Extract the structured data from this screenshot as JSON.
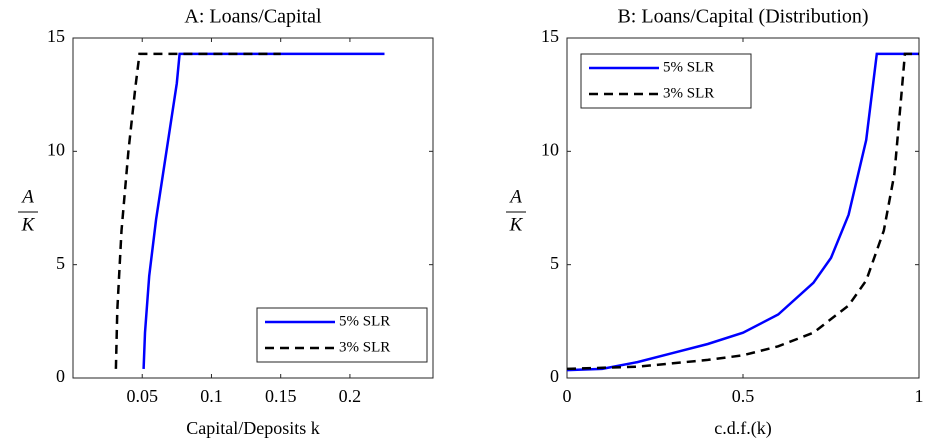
{
  "chart_data": [
    {
      "type": "line",
      "title": "A: Loans/Capital",
      "xlabel": "Capital/Deposits k",
      "ylabel": {
        "numerator": "A",
        "denominator": "K"
      },
      "xlim": [
        0,
        0.26
      ],
      "xticks": [
        0.05,
        0.1,
        0.15,
        0.2
      ],
      "ylim": [
        0,
        15
      ],
      "yticks": [
        0,
        5,
        10,
        15
      ],
      "legend": "lower right",
      "series": [
        {
          "name": "5% SLR",
          "color": "#0000ff",
          "style": "solid",
          "x": [
            0.051,
            0.052,
            0.055,
            0.06,
            0.065,
            0.07,
            0.075,
            0.077,
            0.1,
            0.15,
            0.2,
            0.225
          ],
          "values": [
            0.4,
            2,
            4.5,
            7,
            9,
            11,
            13,
            14.3,
            14.3,
            14.3,
            14.3,
            14.3
          ]
        },
        {
          "name": "3% SLR",
          "color": "#000000",
          "style": "dashed",
          "x": [
            0.031,
            0.032,
            0.035,
            0.04,
            0.045,
            0.048,
            0.1,
            0.15
          ],
          "values": [
            0.4,
            3,
            6.5,
            10,
            12.8,
            14.3,
            14.3,
            14.3
          ]
        }
      ]
    },
    {
      "type": "line",
      "title": "B: Loans/Capital (Distribution)",
      "xlabel": "c.d.f.(k)",
      "ylabel": {
        "numerator": "A",
        "denominator": "K"
      },
      "xlim": [
        0,
        1
      ],
      "xticks": [
        0,
        0.5,
        1
      ],
      "ylim": [
        0,
        15
      ],
      "yticks": [
        0,
        5,
        10,
        15
      ],
      "legend": "upper left",
      "series": [
        {
          "name": "5% SLR",
          "color": "#0000ff",
          "style": "solid",
          "x": [
            0,
            0.1,
            0.2,
            0.3,
            0.4,
            0.5,
            0.6,
            0.7,
            0.75,
            0.8,
            0.85,
            0.88,
            1
          ],
          "values": [
            0.35,
            0.4,
            0.7,
            1.1,
            1.5,
            2.0,
            2.8,
            4.2,
            5.3,
            7.2,
            10.5,
            14.3,
            14.3
          ]
        },
        {
          "name": "3% SLR",
          "color": "#000000",
          "style": "dashed",
          "x": [
            0,
            0.2,
            0.4,
            0.5,
            0.6,
            0.7,
            0.8,
            0.85,
            0.9,
            0.93,
            0.95,
            0.96,
            1
          ],
          "values": [
            0.4,
            0.5,
            0.8,
            1.0,
            1.4,
            2.0,
            3.2,
            4.3,
            6.5,
            9,
            12.5,
            14.3,
            14.3
          ]
        }
      ]
    }
  ]
}
